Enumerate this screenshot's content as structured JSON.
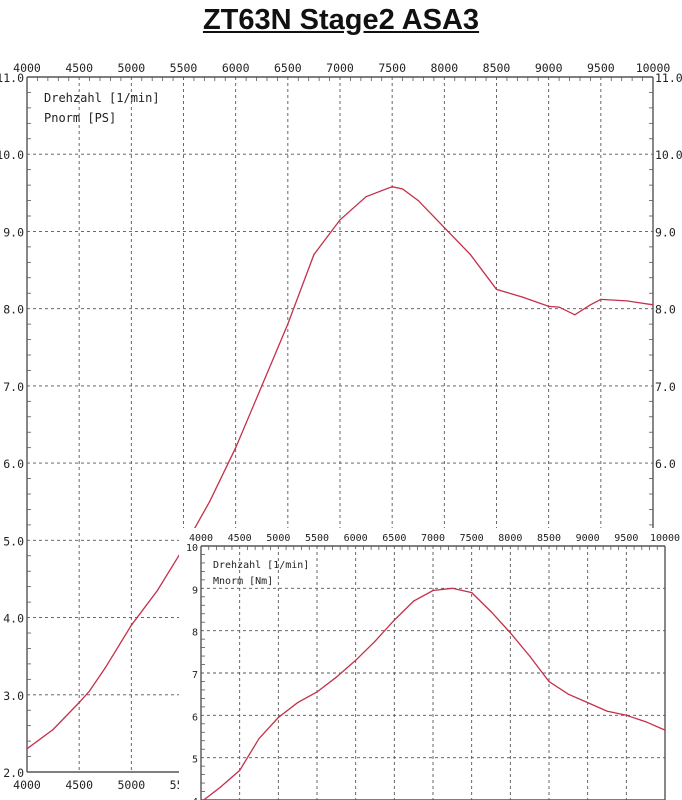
{
  "title": "ZT63N Stage2 ASA3",
  "chart_data": [
    {
      "type": "line",
      "legend": [
        "Drehzahl [1/min]",
        "Pnorm [PS]"
      ],
      "x_ticks": [
        "4000",
        "4500",
        "5000",
        "5500",
        "6000",
        "6500",
        "7000",
        "7500",
        "8000",
        "8500",
        "9000",
        "9500",
        "10000"
      ],
      "y_ticks": [
        "2.0",
        "3.0",
        "4.0",
        "5.0",
        "6.0",
        "7.0",
        "8.0",
        "9.0",
        "10.0",
        "11.0"
      ],
      "xlim": [
        4000,
        10000
      ],
      "ylim": [
        2.0,
        11.0
      ],
      "grid": true,
      "line_color": "#c4304a",
      "series": [
        {
          "x": [
            4000,
            4250,
            4500,
            4600,
            4750,
            5000,
            5250,
            5500,
            5750,
            6000,
            6250,
            6500,
            6750,
            7000,
            7250,
            7500,
            7600,
            7750,
            8000,
            8250,
            8500,
            8750,
            9000,
            9100,
            9250,
            9400,
            9500,
            9750,
            10000
          ],
          "values": [
            2.3,
            2.55,
            2.9,
            3.05,
            3.35,
            3.9,
            4.35,
            4.9,
            5.5,
            6.2,
            7.0,
            7.8,
            8.7,
            9.15,
            9.45,
            9.58,
            9.55,
            9.4,
            9.05,
            8.7,
            8.25,
            8.15,
            8.03,
            8.02,
            7.92,
            8.05,
            8.12,
            8.1,
            8.05
          ]
        }
      ]
    },
    {
      "type": "line",
      "legend": [
        "Drehzahl [1/min]",
        "Mnorm [Nm]"
      ],
      "x_ticks": [
        "4000",
        "4500",
        "5000",
        "5500",
        "6000",
        "6500",
        "7000",
        "7500",
        "8000",
        "8500",
        "9000",
        "9500",
        "10000"
      ],
      "y_ticks": [
        "4",
        "5",
        "6",
        "7",
        "8",
        "9",
        "10"
      ],
      "xlim": [
        4000,
        10000
      ],
      "ylim": [
        4,
        10
      ],
      "grid": true,
      "line_color": "#c4304a",
      "series": [
        {
          "x": [
            4000,
            4250,
            4500,
            4750,
            5000,
            5250,
            5500,
            5750,
            6000,
            6250,
            6500,
            6750,
            7000,
            7250,
            7500,
            7750,
            8000,
            8250,
            8500,
            8750,
            9000,
            9250,
            9500,
            9750,
            10000
          ],
          "values": [
            3.95,
            4.3,
            4.7,
            5.45,
            5.95,
            6.3,
            6.55,
            6.9,
            7.3,
            7.75,
            8.25,
            8.7,
            8.95,
            9.0,
            8.9,
            8.45,
            7.95,
            7.4,
            6.8,
            6.5,
            6.3,
            6.1,
            6.0,
            5.85,
            5.65
          ]
        }
      ]
    }
  ]
}
